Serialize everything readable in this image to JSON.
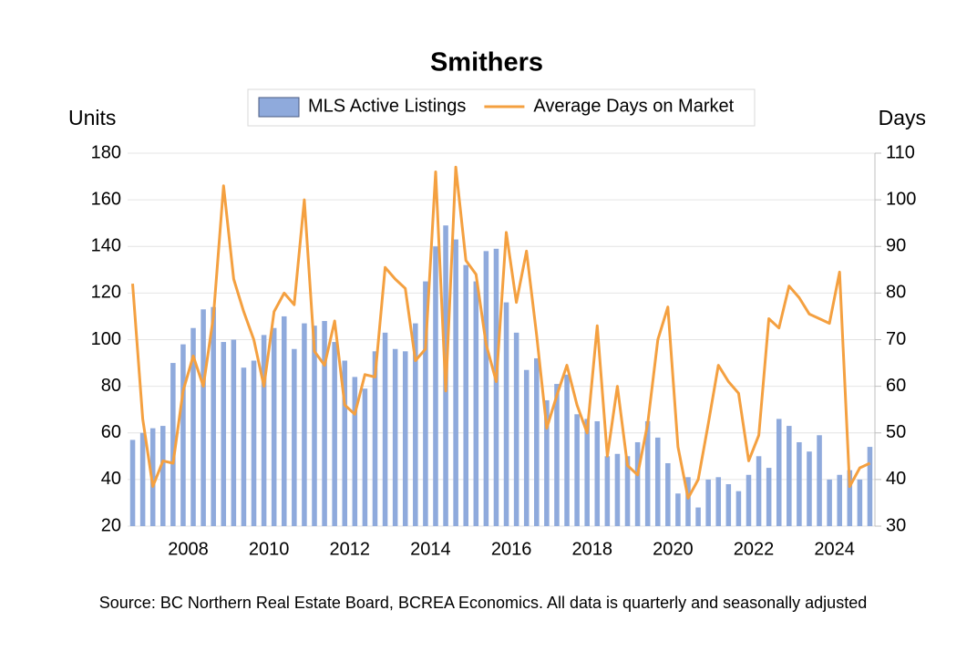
{
  "chart_data": {
    "type": "combo",
    "title": "Smithers",
    "y_label": "Units",
    "y2_label": "Days",
    "source": "Source: BC Northern Real Estate Board, BCREA Economics. All data is quarterly and seasonally adjusted",
    "categories": [
      null,
      null,
      null,
      null,
      null,
      null,
      "2008",
      null,
      null,
      null,
      null,
      null,
      null,
      null,
      "2010",
      null,
      null,
      null,
      null,
      null,
      null,
      null,
      "2012",
      null,
      null,
      null,
      null,
      null,
      null,
      null,
      "2014",
      null,
      null,
      null,
      null,
      null,
      null,
      null,
      "2016",
      null,
      null,
      null,
      null,
      null,
      null,
      null,
      "2018",
      null,
      null,
      null,
      null,
      null,
      null,
      null,
      "2020",
      null,
      null,
      null,
      null,
      null,
      null,
      null,
      "2022",
      null,
      null,
      null,
      null,
      null,
      null,
      null,
      "2024",
      null,
      null,
      null
    ],
    "series": [
      {
        "name": "MLS Active Listings",
        "type": "bar",
        "color": "#8faadc",
        "values": [
          57,
          60,
          62,
          63,
          90,
          98,
          105,
          113,
          114,
          99,
          100,
          88,
          91,
          102,
          105,
          110,
          96,
          107,
          106,
          108,
          99,
          91,
          84,
          79,
          95,
          103,
          96,
          95,
          107,
          125,
          140,
          149,
          143,
          132,
          125,
          138,
          139,
          116,
          103,
          87,
          92,
          74,
          81,
          85,
          68,
          66,
          65,
          50,
          51,
          50,
          56,
          65,
          58,
          47,
          34,
          41,
          28,
          40,
          41,
          38,
          35,
          42,
          50,
          45,
          66,
          63,
          56,
          52,
          59,
          40,
          42,
          44,
          40,
          54
        ]
      },
      {
        "name": "Average Days on Market",
        "type": "line",
        "axis": "y2",
        "color": "#f4a040",
        "values": [
          82,
          53,
          38.5,
          44,
          43.5,
          59,
          66.5,
          60,
          75,
          103,
          83,
          76,
          70,
          60,
          76,
          80,
          77.5,
          100,
          67.5,
          64.5,
          74,
          56,
          54,
          62.5,
          62,
          85.5,
          83,
          81,
          65.5,
          68,
          106,
          59,
          107,
          87,
          84,
          69,
          61,
          93,
          78,
          89,
          71,
          51,
          58,
          64.5,
          56,
          50,
          73,
          45,
          60,
          43,
          41,
          52,
          70,
          77,
          47,
          36,
          40,
          52,
          64.5,
          61,
          58.5,
          44,
          49.5,
          74.5,
          72.5,
          81.5,
          79,
          75.5,
          74.5,
          73.5,
          84.5,
          38.5,
          42.5,
          43.5
        ]
      }
    ],
    "ylim": [
      20,
      180
    ],
    "yticks": [
      20,
      40,
      60,
      80,
      100,
      120,
      140,
      160,
      180
    ],
    "y2lim": [
      30,
      110
    ],
    "y2ticks": [
      30,
      40,
      50,
      60,
      70,
      80,
      90,
      100,
      110
    ],
    "grid": true,
    "legend": "top"
  }
}
